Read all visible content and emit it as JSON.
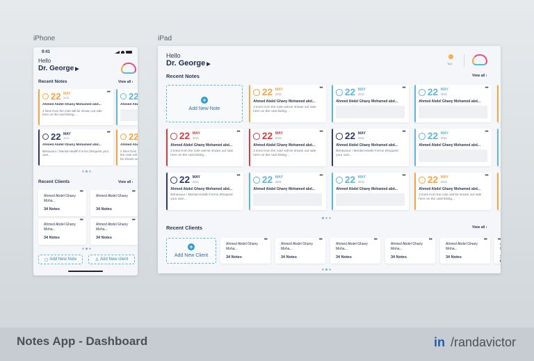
{
  "labels": {
    "iphone": "iPhone",
    "ipad": "iPad"
  },
  "header": {
    "hello": "Hello",
    "name": "Dr. George",
    "tips": "Tips"
  },
  "sections": {
    "recent_notes": "Recent Notes",
    "recent_clients": "Recent Clients",
    "view_all": "View all"
  },
  "phone": {
    "time": "9:41",
    "add_note": "Add New Note",
    "add_client": "Add New client"
  },
  "ipad": {
    "add_note": "Add New Note",
    "add_client": "Add New Client"
  },
  "note": {
    "day": "22",
    "month": "MAY",
    "year": "2021",
    "author": "Ahmed Abdel Ghany Mohamed abd...",
    "lines": "2 lines from the note will be shown out side here on the card listing...",
    "form": "Behaviour / Mental Health Forms (Request your own..."
  },
  "client": {
    "name_a": "Ahmed Abdel Ghany Moha...",
    "name_b": "Ahmed Abdel Ghany",
    "count": "34 Notes"
  },
  "colors": {
    "orange": "#f3a53c",
    "blue": "#5bb6d9",
    "navy": "#2d3a6e",
    "red": "#d23c3c",
    "teal": "#3bb0c9"
  },
  "footer": {
    "title": "Notes App - Dashboard",
    "linkedin": "in",
    "handle": "/randavictor"
  }
}
